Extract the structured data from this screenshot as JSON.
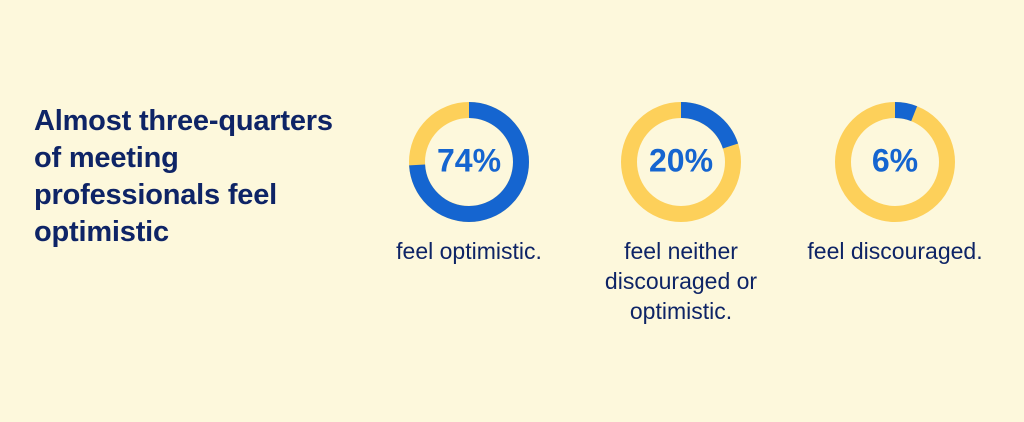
{
  "headline": "Almost three-quarters of meeting professionals feel optimistic",
  "colors": {
    "background": "#fdf8dc",
    "filled": "#1565d0",
    "remainder": "#fdd05a",
    "text": "#0e2466"
  },
  "chart_data": [
    {
      "type": "pie",
      "value": 74,
      "value_label": "74%",
      "caption": "feel optimistic."
    },
    {
      "type": "pie",
      "value": 20,
      "value_label": "20%",
      "caption": "feel neither discouraged or optimistic."
    },
    {
      "type": "pie",
      "value": 6,
      "value_label": "6%",
      "caption": "feel discouraged."
    }
  ]
}
